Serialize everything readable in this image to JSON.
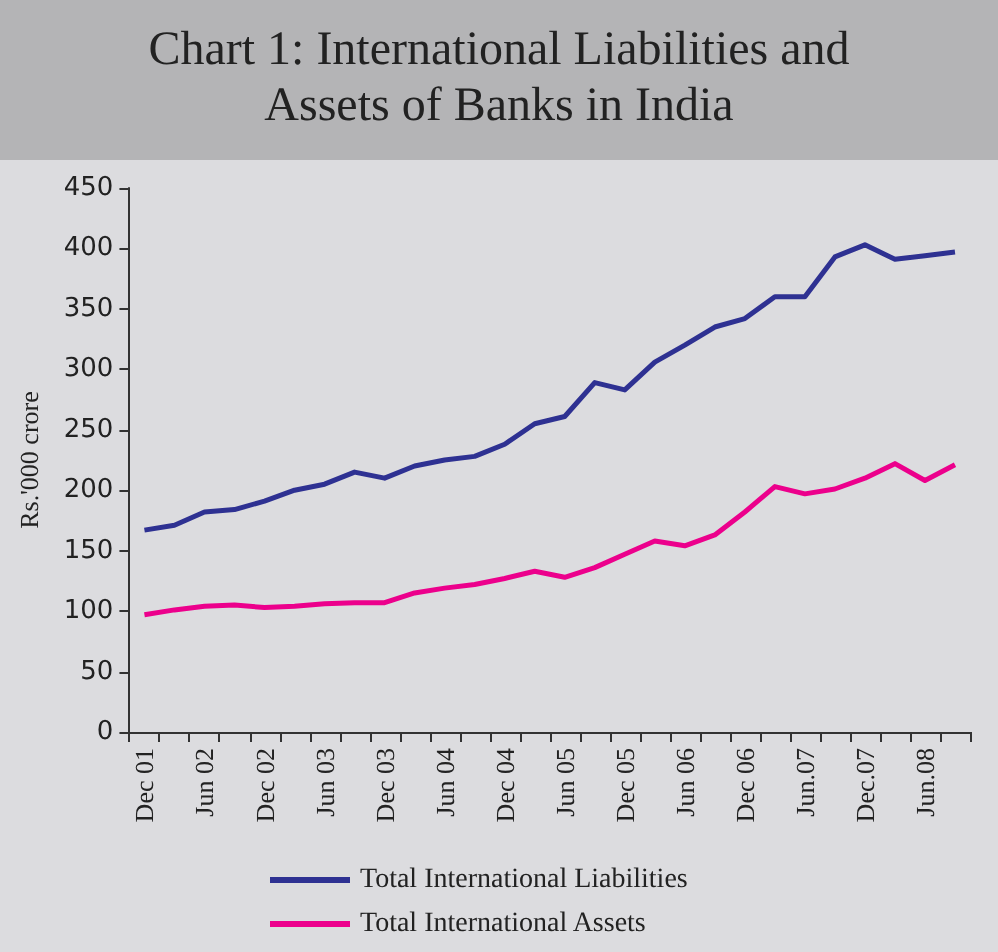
{
  "chart_data": {
    "type": "line",
    "title": "Chart 1: International Liabilities and Assets of Banks in India",
    "ylabel": "Rs.'000 crore",
    "categories": [
      "Dec 01",
      null,
      "Jun 02",
      null,
      "Dec 02",
      null,
      "Jun 03",
      null,
      "Dec 03",
      null,
      "Jun 04",
      null,
      "Dec 04",
      null,
      "Jun 05",
      null,
      "Dec 05",
      null,
      "Jun 06",
      null,
      "Dec 06",
      null,
      "Jun.07",
      null,
      "Dec.07",
      null,
      "Jun.08",
      null
    ],
    "series": [
      {
        "name": "Total International Liabilities",
        "color": "#2e3192",
        "values": [
          167,
          171,
          182,
          184,
          191,
          200,
          205,
          215,
          210,
          220,
          225,
          228,
          238,
          255,
          261,
          289,
          283,
          306,
          320,
          335,
          342,
          360,
          360,
          393,
          403,
          391,
          394,
          397
        ]
      },
      {
        "name": "Total International Assets",
        "color": "#ec008c",
        "values": [
          97,
          101,
          104,
          105,
          103,
          104,
          106,
          107,
          107,
          115,
          119,
          122,
          127,
          133,
          128,
          136,
          147,
          158,
          154,
          163,
          182,
          203,
          197,
          201,
          210,
          222,
          208,
          221
        ]
      }
    ],
    "ylim": [
      0,
      450
    ],
    "yticks": [
      0,
      50,
      100,
      150,
      200,
      250,
      300,
      350,
      400,
      450
    ],
    "legend": "bottom",
    "marker": "none",
    "line_style": "solid"
  }
}
